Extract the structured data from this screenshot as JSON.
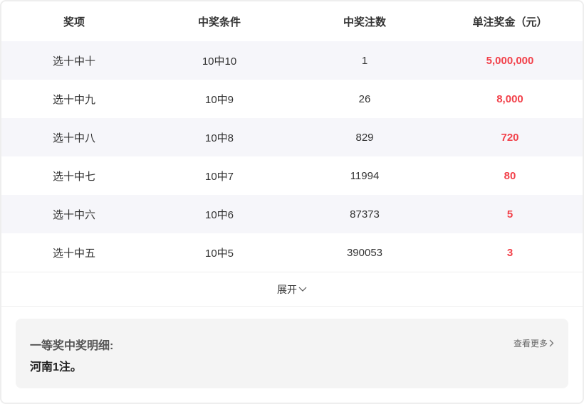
{
  "table": {
    "headers": [
      "奖项",
      "中奖条件",
      "中奖注数",
      "单注奖金（元）"
    ],
    "rows": [
      {
        "name": "选十中十",
        "condition": "10中10",
        "count": "1",
        "prize": "5,000,000"
      },
      {
        "name": "选十中九",
        "condition": "10中9",
        "count": "26",
        "prize": "8,000"
      },
      {
        "name": "选十中八",
        "condition": "10中8",
        "count": "829",
        "prize": "720"
      },
      {
        "name": "选十中七",
        "condition": "10中7",
        "count": "11994",
        "prize": "80"
      },
      {
        "name": "选十中六",
        "condition": "10中6",
        "count": "87373",
        "prize": "5"
      },
      {
        "name": "选十中五",
        "condition": "10中5",
        "count": "390053",
        "prize": "3"
      }
    ]
  },
  "expand_label": "展开",
  "detail": {
    "title": "一等奖中奖明细:",
    "body": "河南1注。",
    "more_label": "查看更多"
  },
  "colors": {
    "prize": "#f2414a",
    "alt_row": "#f6f6fa",
    "detail_bg": "#f4f4f4"
  },
  "icons": {
    "expand": "chevron-down-icon",
    "more": "chevron-right-icon"
  }
}
